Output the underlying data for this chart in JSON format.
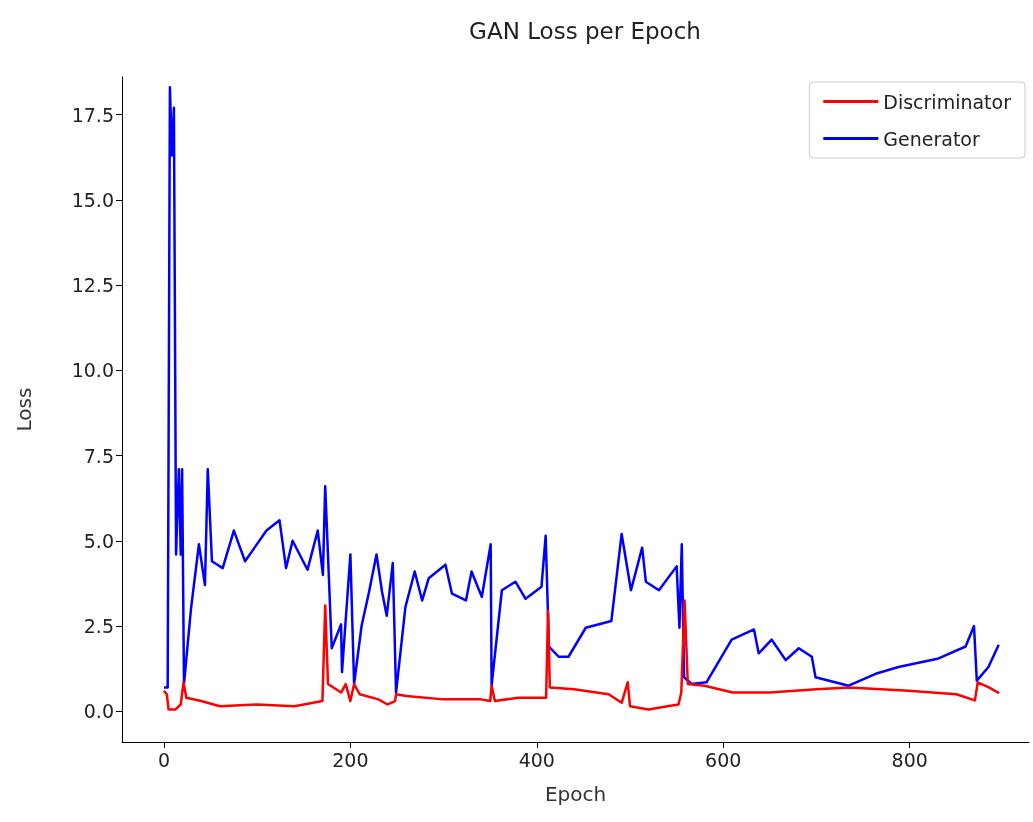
{
  "chart_data": {
    "type": "line",
    "title": "GAN Loss per Epoch",
    "xlabel": "Epoch",
    "ylabel": "Loss",
    "xlim": [
      -45,
      928
    ],
    "xticks": [
      0,
      200,
      400,
      600,
      800
    ],
    "ylim": [
      -0.9,
      18.6
    ],
    "yticks": [
      {
        "value": 0,
        "label": "0.0"
      },
      {
        "value": 2.5,
        "label": "2.5"
      },
      {
        "value": 5,
        "label": "5.0"
      },
      {
        "value": 7.5,
        "label": "7.5"
      },
      {
        "value": 10,
        "label": "10.0"
      },
      {
        "value": 12.5,
        "label": "12.5"
      },
      {
        "value": 15,
        "label": "15.0"
      },
      {
        "value": 17.5,
        "label": "17.5"
      }
    ],
    "grid": false,
    "legend": "top right",
    "marker": "none",
    "line_style": "solid",
    "series": [
      {
        "name": "Discriminator",
        "color": "#ff0000",
        "x": [
          0,
          3,
          5,
          12,
          18,
          21,
          24,
          40,
          60,
          100,
          140,
          170,
          173,
          176,
          190,
          195,
          200,
          204,
          210,
          230,
          240,
          248,
          249,
          260,
          300,
          340,
          350,
          351.5,
          355,
          380,
          410,
          412,
          414,
          440,
          477,
          491,
          497.5,
          500,
          520,
          540,
          552,
          555,
          558.5,
          562,
          580,
          610,
          650,
          700,
          735,
          799,
          850,
          870,
          873,
          885,
          896
        ],
        "values": [
          0.6,
          0.5,
          0.05,
          0.05,
          0.2,
          0.85,
          0.4,
          0.3,
          0.15,
          0.2,
          0.15,
          0.3,
          3.1,
          0.8,
          0.55,
          0.8,
          0.3,
          0.8,
          0.5,
          0.35,
          0.2,
          0.3,
          0.5,
          0.45,
          0.35,
          0.35,
          0.3,
          0.75,
          0.3,
          0.4,
          0.4,
          2.95,
          0.7,
          0.65,
          0.5,
          0.25,
          0.85,
          0.15,
          0.05,
          0.15,
          0.2,
          0.55,
          3.25,
          0.8,
          0.75,
          0.55,
          0.55,
          0.65,
          0.7,
          0.6,
          0.5,
          0.32,
          0.85,
          0.7,
          0.53
        ]
      },
      {
        "name": "Generator",
        "color": "#0000ff",
        "x": [
          0,
          4,
          6.4,
          8.6,
          10.7,
          13,
          16,
          18,
          19.5,
          21.5,
          29,
          37.5,
          44,
          47,
          51.5,
          63,
          75,
          87,
          110,
          124,
          131,
          138,
          154,
          165,
          170.5,
          173,
          180,
          190,
          191,
          200,
          204,
          212,
          220,
          228,
          234,
          239,
          245.5,
          249,
          259,
          269,
          277,
          284,
          302,
          309,
          324,
          330,
          341,
          350.5,
          351.5,
          362.5,
          377,
          388,
          405,
          409.5,
          413,
          423.5,
          434,
          452.5,
          480,
          491,
          501,
          513,
          517,
          531,
          550,
          553,
          555.5,
          558,
          566,
          582,
          609,
          633,
          638,
          652,
          667,
          681,
          695,
          699,
          734.5,
          763.5,
          788,
          831,
          860,
          869,
          872,
          884.5,
          895.5
        ],
        "values": [
          0.7,
          0.7,
          18.3,
          16.3,
          17.7,
          4.6,
          7.1,
          4.6,
          7.1,
          0.8,
          3.0,
          4.9,
          3.7,
          7.1,
          4.4,
          4.2,
          5.3,
          4.4,
          5.3,
          5.6,
          4.2,
          5.0,
          4.15,
          5.3,
          4.0,
          6.6,
          1.85,
          2.55,
          1.15,
          4.6,
          0.8,
          2.5,
          3.5,
          4.6,
          3.5,
          2.8,
          4.35,
          0.55,
          3.05,
          4.1,
          3.25,
          3.9,
          4.3,
          3.45,
          3.25,
          4.1,
          3.35,
          4.9,
          0.75,
          3.55,
          3.8,
          3.3,
          3.65,
          5.15,
          1.9,
          1.6,
          1.6,
          2.45,
          2.65,
          5.2,
          3.55,
          4.8,
          3.8,
          3.55,
          4.25,
          2.45,
          4.9,
          1.0,
          0.8,
          0.85,
          2.1,
          2.4,
          1.7,
          2.1,
          1.5,
          1.85,
          1.6,
          1.0,
          0.75,
          1.1,
          1.3,
          1.55,
          1.9,
          2.5,
          0.9,
          1.3,
          1.95
        ]
      }
    ]
  }
}
